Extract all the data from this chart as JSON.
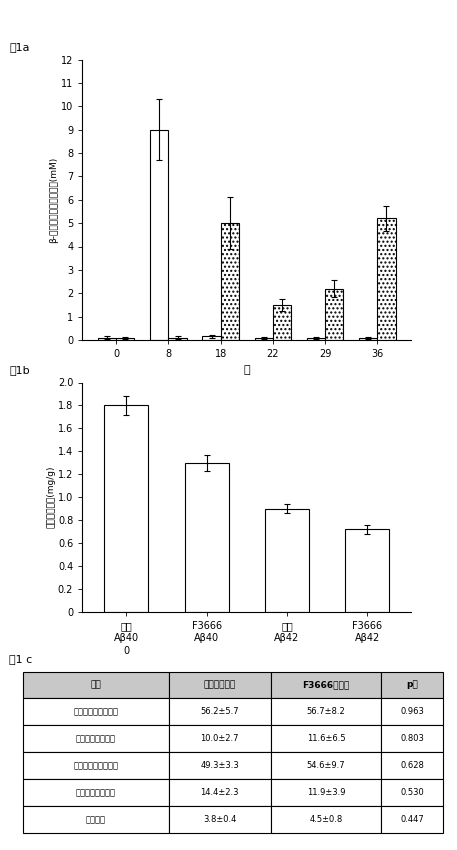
{
  "fig1a_title": "図1a",
  "fig1a_days": [
    0,
    8,
    18,
    22,
    29,
    36
  ],
  "fig1a_bar1_values": [
    0.1,
    9.0,
    0.15,
    0.08,
    0.08,
    0.08
  ],
  "fig1a_bar1_errors": [
    0.05,
    1.3,
    0.08,
    0.04,
    0.04,
    0.04
  ],
  "fig1a_bar2_values": [
    0.08,
    0.1,
    5.0,
    1.5,
    2.2,
    5.2
  ],
  "fig1a_bar2_errors": [
    0.04,
    0.06,
    1.1,
    0.25,
    0.35,
    0.55
  ],
  "fig1a_ylabel": "β-ヒドロキシブチラート(mM)",
  "fig1a_xlabel": "日",
  "fig1a_ylim": [
    0,
    12
  ],
  "fig1a_yticks": [
    0,
    1,
    2,
    3,
    4,
    5,
    6,
    7,
    8,
    9,
    10,
    11,
    12
  ],
  "fig1b_title": "図1b",
  "fig1b_categories_line1": [
    "標準",
    "F3666",
    "標準",
    "F3666"
  ],
  "fig1b_categories_line2": [
    "Aβ40",
    "Aβ40",
    "Aβ42",
    "Aβ42"
  ],
  "fig1b_categories_line3": [
    "0",
    "",
    "",
    ""
  ],
  "fig1b_values": [
    1.8,
    1.3,
    0.9,
    0.72
  ],
  "fig1b_errors": [
    0.08,
    0.07,
    0.04,
    0.04
  ],
  "fig1b_ylabel": "総タンパク質(mg/g)",
  "fig1b_ylim": [
    0,
    2
  ],
  "fig1b_yticks": [
    0,
    0.2,
    0.4,
    0.6,
    0.8,
    1.0,
    1.2,
    1.4,
    1.6,
    1.8,
    2.0
  ],
  "fig1c_title": "図1 c",
  "table_header": [
    "試験",
    "標準的な食事",
    "F3666の食事",
    "p値"
  ],
  "table_rows": [
    [
      "時間による認識指数",
      "56.2±5.7",
      "56.7±8.2",
      "0.963"
    ],
    [
      "時間による好奇性",
      "10.0±2.7",
      "11.6±6.5",
      "0.803"
    ],
    [
      "頻度による認識指数",
      "49.3±3.3",
      "54.6±9.7",
      "0.628"
    ],
    [
      "頻度による好奇性",
      "14.4±2.3",
      "11.9±3.9",
      "0.530"
    ],
    [
      "平均速度",
      "3.8±0.4",
      "4.5±0.8",
      "0.447"
    ]
  ]
}
